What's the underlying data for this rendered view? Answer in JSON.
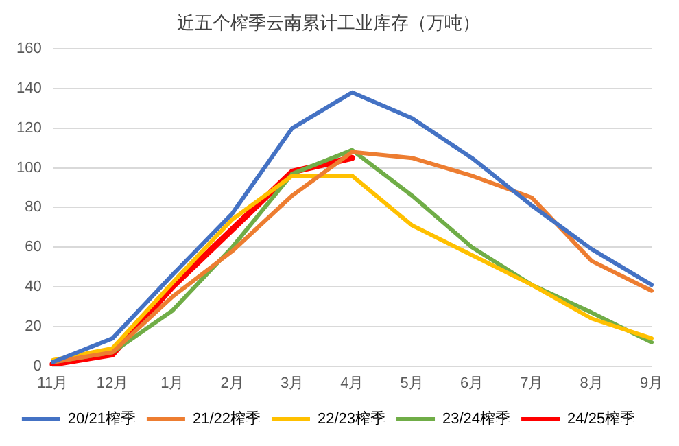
{
  "chart_data": {
    "type": "line",
    "title": "近五个榨季云南累计工业库存（万吨）",
    "categories": [
      "11月",
      "12月",
      "1月",
      "2月",
      "3月",
      "4月",
      "5月",
      "6月",
      "7月",
      "8月",
      "9月"
    ],
    "series": [
      {
        "name": "20/21榨季",
        "color": "#4472c4",
        "values": [
          2,
          14,
          46,
          77,
          120,
          138,
          125,
          105,
          81,
          59,
          41
        ]
      },
      {
        "name": "21/22榨季",
        "color": "#ed7d31",
        "values": [
          2,
          7,
          35,
          58,
          86,
          108,
          105,
          96,
          85,
          53,
          38
        ]
      },
      {
        "name": "22/23榨季",
        "color": "#ffc000",
        "values": [
          3,
          9,
          42,
          74,
          96,
          96,
          71,
          56,
          41,
          24,
          14
        ]
      },
      {
        "name": "23/24榨季",
        "color": "#70ad47",
        "values": [
          2,
          7,
          28,
          60,
          97,
          109,
          86,
          60,
          41,
          27,
          12
        ]
      },
      {
        "name": "24/25榨季",
        "color": "#ff0000",
        "values": [
          1,
          6,
          40,
          69,
          98,
          105,
          null,
          null,
          null,
          null,
          null
        ]
      }
    ],
    "ylim": [
      0,
      160
    ],
    "yticks": [
      0,
      20,
      40,
      60,
      80,
      100,
      120,
      140,
      160
    ],
    "grid": "y",
    "legend": "bottom",
    "marker": "none",
    "line_style": "solid"
  }
}
